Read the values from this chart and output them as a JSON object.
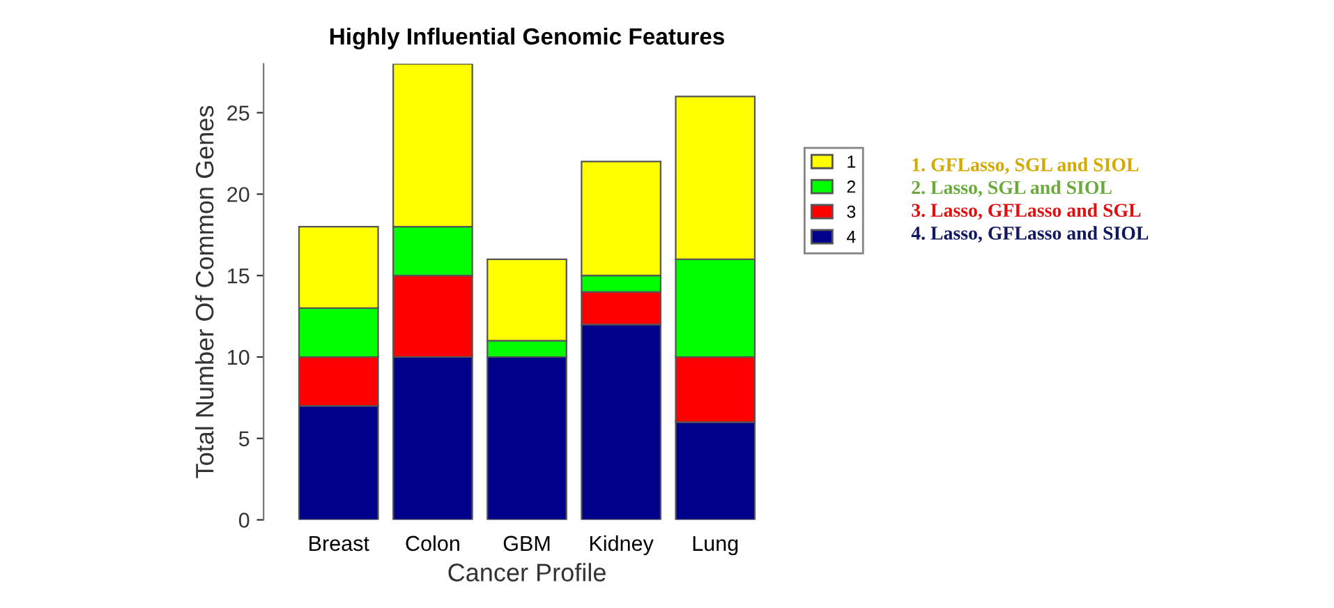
{
  "chart_data": {
    "type": "bar",
    "stacked": true,
    "title": "Highly Influential Genomic Features",
    "xlabel": "Cancer Profile",
    "ylabel": "Total Number Of Common Genes",
    "categories": [
      "Breast",
      "Colon",
      "GBM",
      "Kidney",
      "Lung"
    ],
    "series": [
      {
        "name": "4",
        "color": "#00008b",
        "values": [
          7,
          10,
          10,
          12,
          6
        ]
      },
      {
        "name": "3",
        "color": "#ff0000",
        "values": [
          3,
          5,
          0,
          2,
          4
        ]
      },
      {
        "name": "2",
        "color": "#00ff00",
        "values": [
          3,
          3,
          1,
          1,
          6
        ]
      },
      {
        "name": "1",
        "color": "#ffff00",
        "values": [
          5,
          10,
          5,
          7,
          10
        ]
      }
    ],
    "ylim": [
      0,
      28
    ],
    "yticks": [
      0,
      5,
      10,
      15,
      20,
      25
    ],
    "grid": false,
    "legend": "right",
    "annotations": [
      "1. GFLasso, SGL and SIOL",
      "2. Lasso, SGL and SIOL",
      "3. Lasso, GFLasso and SGL",
      "4. Lasso, GFLasso and SIOL"
    ]
  }
}
